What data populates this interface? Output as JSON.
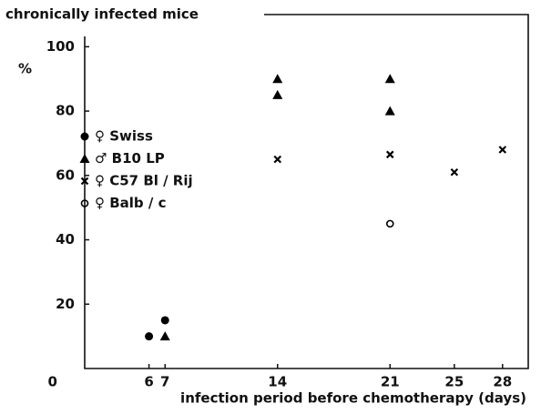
{
  "chart_data": {
    "type": "scatter",
    "title": "chronically infected mice",
    "ylabel": "%",
    "xlabel": "infection period before chemotherapy (days)",
    "xlim": [
      2,
      29.6
    ],
    "xticks": [
      0,
      6,
      7,
      14,
      21,
      25,
      28
    ],
    "ylim": [
      0,
      110
    ],
    "yticks": [
      20,
      40,
      60,
      80,
      100
    ],
    "grid": false,
    "legend": "left",
    "series": [
      {
        "name": "♀ Swiss",
        "marker": "filled-circle",
        "color": "#000000",
        "x": [
          6,
          7
        ],
        "values": [
          10,
          15
        ]
      },
      {
        "name": "♂ B10 LP",
        "marker": "filled-triangle",
        "color": "#000000",
        "x": [
          7,
          14,
          14,
          21,
          21
        ],
        "values": [
          10,
          90,
          85,
          90,
          80
        ]
      },
      {
        "name": "♀ C57 Bl / Rij",
        "marker": "cross",
        "color": "#000000",
        "x": [
          14,
          21,
          25,
          28
        ],
        "values": [
          65,
          66.5,
          61,
          68
        ]
      },
      {
        "name": "♀ Balb / c",
        "marker": "open-circle",
        "color": "#000000",
        "x": [
          21
        ],
        "values": [
          45
        ]
      }
    ]
  }
}
